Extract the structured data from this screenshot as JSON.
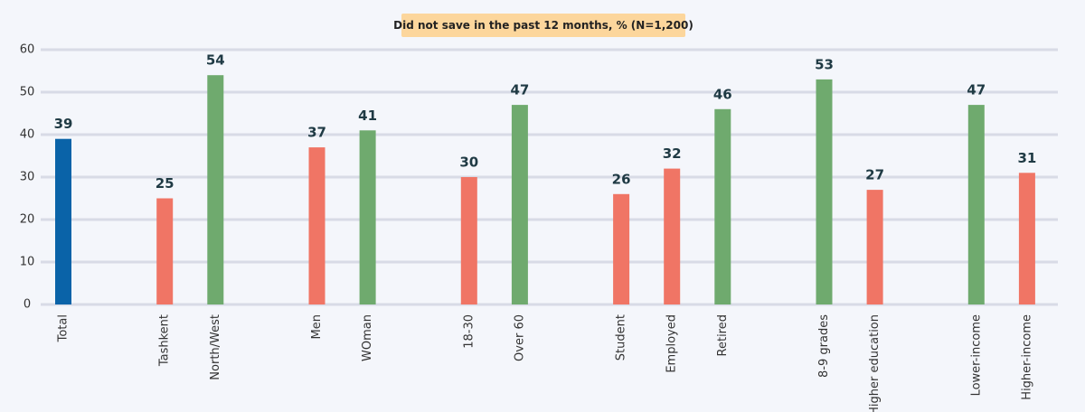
{
  "chart_data": {
    "type": "bar",
    "title": "Did not save in the past 12 months, % (N=1,200)",
    "categories": [
      "Total",
      null,
      "Tashkent",
      "North/West",
      null,
      "Men",
      "WOman",
      null,
      "18-30",
      "Over 60",
      null,
      "Student",
      "Employed",
      "Retired",
      null,
      "8-9 grades",
      "Higher education",
      null,
      "Lower-income",
      "Higher-income"
    ],
    "values": [
      39,
      null,
      25,
      54,
      null,
      37,
      41,
      null,
      30,
      47,
      null,
      26,
      32,
      46,
      null,
      53,
      27,
      null,
      47,
      31
    ],
    "colors": [
      "#0a63a8",
      null,
      "#f07565",
      "#6faa6e",
      null,
      "#f07565",
      "#6faa6e",
      null,
      "#f07565",
      "#6faa6e",
      null,
      "#f07565",
      "#f07565",
      "#6faa6e",
      null,
      "#6faa6e",
      "#f07565",
      null,
      "#6faa6e",
      "#f07565"
    ],
    "ylim": [
      0,
      60
    ],
    "yticks": [
      0,
      10,
      20,
      30,
      40,
      50,
      60
    ],
    "grid": true
  }
}
